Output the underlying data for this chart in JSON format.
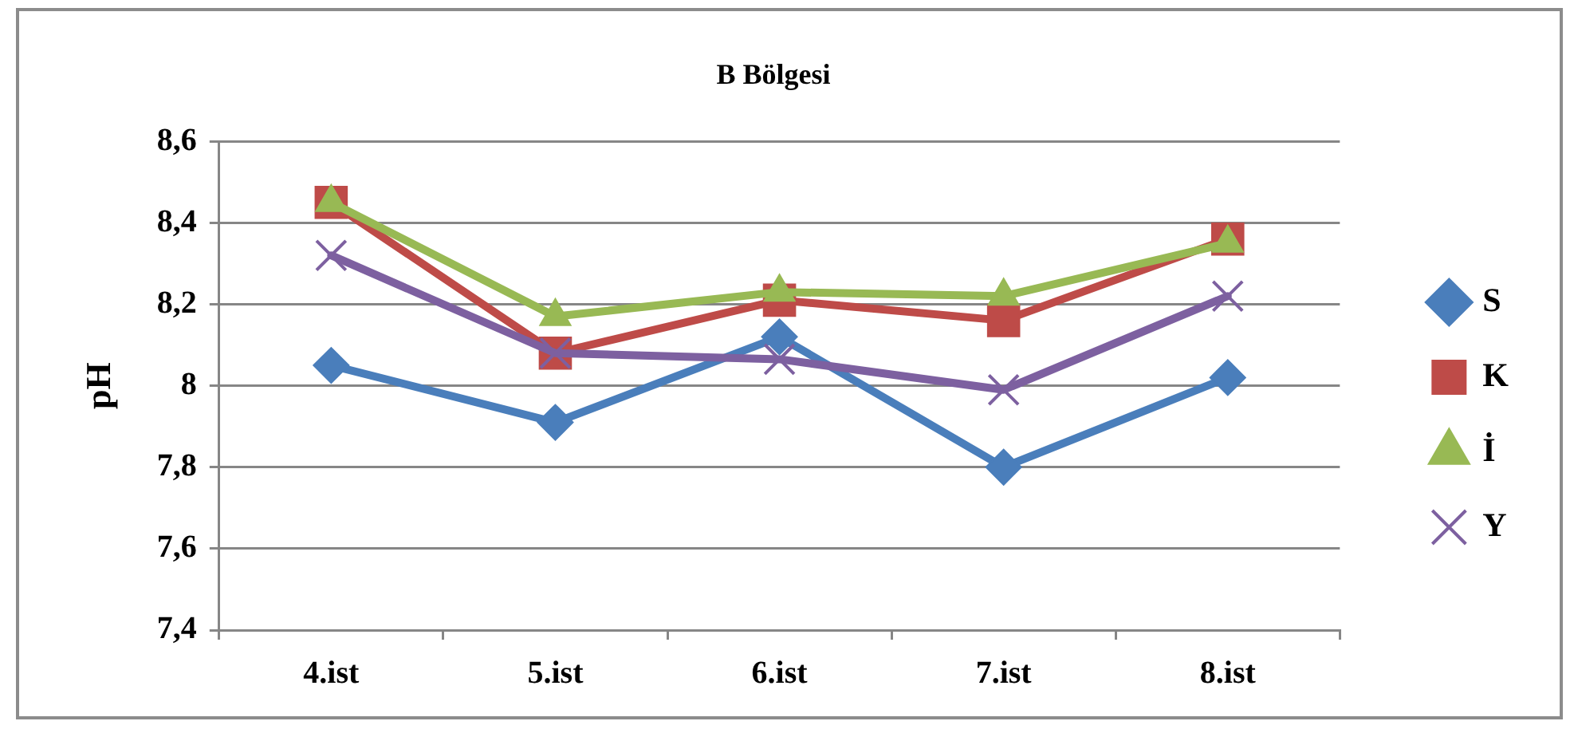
{
  "chart_data": {
    "type": "line",
    "title": "B Bölgesi",
    "ylabel": "pH",
    "categories": [
      "4.ist",
      "5.ist",
      "6.ist",
      "7.ist",
      "8.ist"
    ],
    "series": [
      {
        "name": "S",
        "color": "#4a7ebb",
        "marker": "diamond",
        "values": [
          8.05,
          7.91,
          8.12,
          7.8,
          8.02
        ]
      },
      {
        "name": "K",
        "color": "#be4b48",
        "marker": "square",
        "values": [
          8.45,
          8.08,
          8.21,
          8.16,
          8.36
        ]
      },
      {
        "name": "İ",
        "color": "#98b954",
        "marker": "triangle",
        "values": [
          8.45,
          8.17,
          8.23,
          8.22,
          8.35
        ]
      },
      {
        "name": "Y",
        "color": "#7d60a0",
        "marker": "cross",
        "values": [
          8.32,
          8.08,
          8.065,
          7.99,
          8.22
        ]
      }
    ],
    "ylim": [
      7.4,
      8.6
    ],
    "yticks": [
      {
        "value": 7.4,
        "label": "7,4"
      },
      {
        "value": 7.6,
        "label": "7,6"
      },
      {
        "value": 7.8,
        "label": "7,8"
      },
      8,
      {
        "value": 8.2,
        "label": "8,2"
      },
      {
        "value": 8.4,
        "label": "8,4"
      },
      {
        "value": 8.6,
        "label": "8,6"
      }
    ],
    "grid": "y",
    "legend": "right",
    "line_style": "solid"
  }
}
